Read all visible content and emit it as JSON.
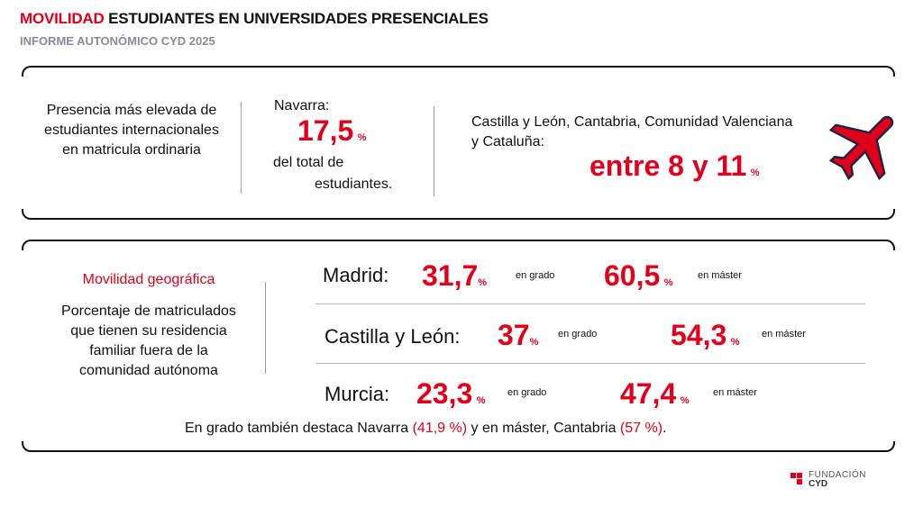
{
  "header": {
    "title_highlight": "MOVILIDAD",
    "title_rest": " ESTUDIANTES EN UNIVERSIDADES PRESENCIALES",
    "subtitle": "INFORME AUTONÓMICO CYD 2025"
  },
  "box1": {
    "col1": "Presencia más elevada de estudiantes internacionales en matricula ordinaria",
    "col2": {
      "region": "Navarra:",
      "value": "17,5",
      "unit": "%",
      "line1": "del total de",
      "line2": "estudiantes."
    },
    "col3": {
      "regions": "Castilla y León, Cantabria, Comunidad Valenciana y Cataluña:",
      "value": "entre 8 y 11",
      "unit": "%"
    },
    "icon": "airplane-icon"
  },
  "box2": {
    "heading": "Movilidad geográfica",
    "description": "Porcentaje de matriculados que tienen su residencia familiar fuera de la comunidad autónoma",
    "rows": [
      {
        "city": "Madrid:",
        "grado": "31,7",
        "master": "60,5"
      },
      {
        "city": "Castilla y León:",
        "grado": "37",
        "master": "54,3"
      },
      {
        "city": "Murcia:",
        "grado": "23,3",
        "master": "47,4"
      }
    ],
    "unit": "%",
    "grado_label": "en grado",
    "master_label": "en máster",
    "footer": {
      "p1": "En grado también destaca Navarra ",
      "v1": "(41,9 %)",
      "p2": " y en máster, Cantabria ",
      "v2": "(57 %)",
      "p3": "."
    }
  },
  "logo": {
    "line1": "FUNDACIÓN",
    "line2": "CYD"
  },
  "colors": {
    "accent": "#e0001b"
  }
}
